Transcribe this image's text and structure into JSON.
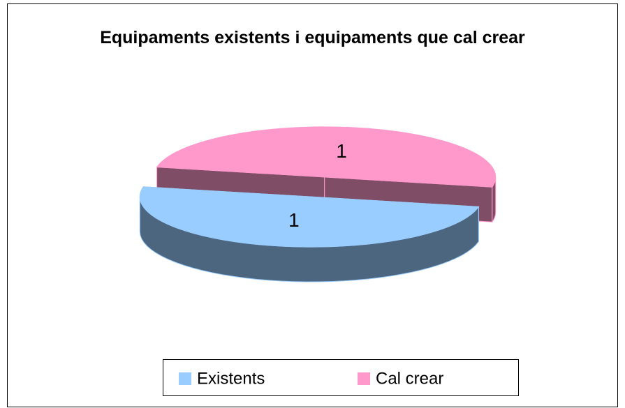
{
  "chart_data": {
    "type": "pie3d",
    "title": "Equipaments existents i equipaments que cal crear",
    "categories": [
      "Existents",
      "Cal crear"
    ],
    "values": [
      1,
      1
    ],
    "colors": [
      "#99ccff",
      "#ff99cc"
    ],
    "data_labels": true,
    "legend": "bottom"
  }
}
